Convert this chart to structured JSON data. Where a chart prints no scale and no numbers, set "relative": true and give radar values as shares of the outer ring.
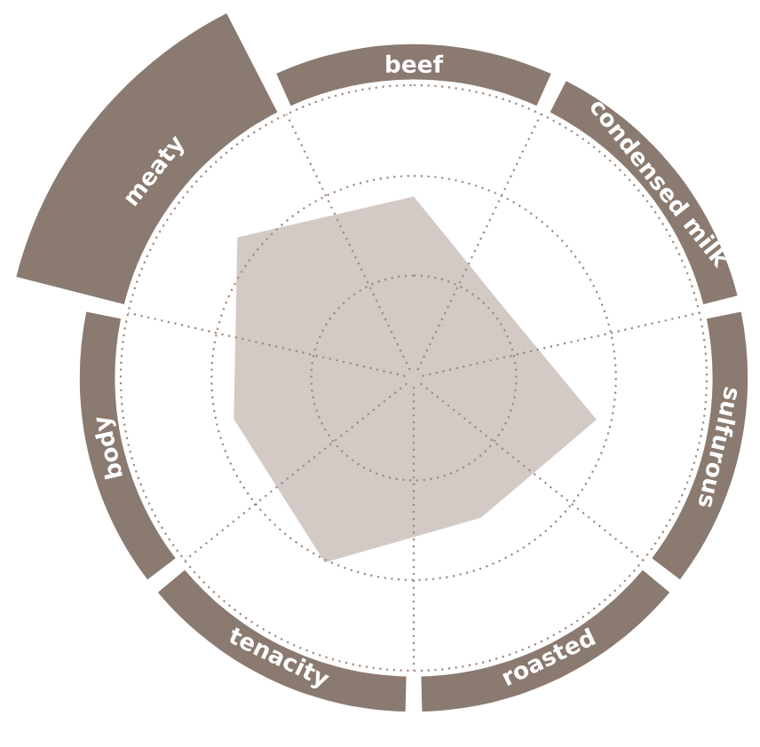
{
  "chart_data": {
    "type": "radar",
    "relative": true,
    "grid": true,
    "categories": [
      "beef",
      "condensed milk",
      "sulfurous",
      "roasted",
      "tenacity",
      "body",
      "meaty"
    ],
    "series": [
      {
        "color": "#d3cac6",
        "values": [
          0.62,
          0.39,
          0.64,
          0.53,
          0.7,
          0.63,
          0.77
        ]
      }
    ]
  }
}
